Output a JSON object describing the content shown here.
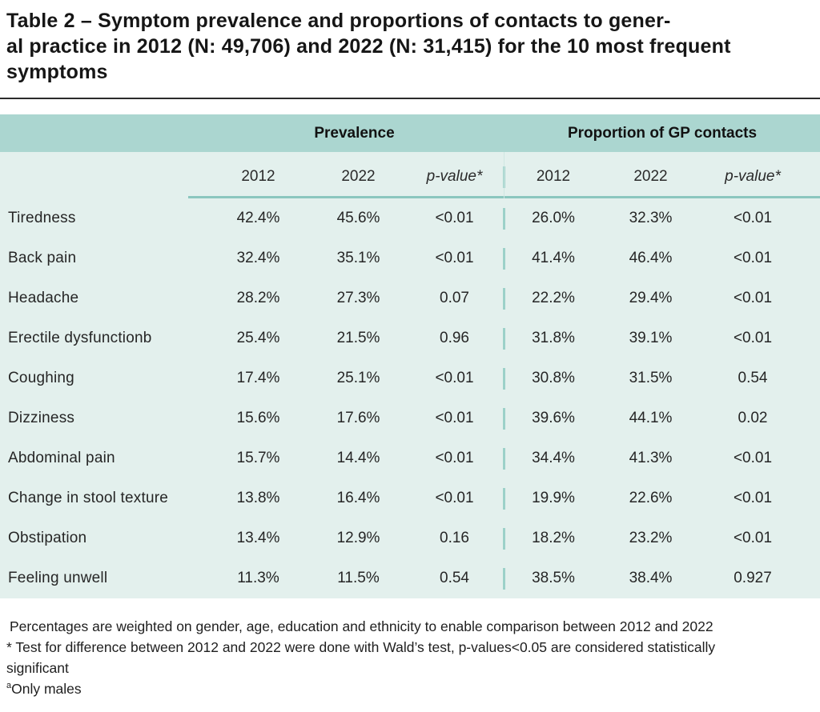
{
  "title": {
    "lines": [
      "Table 2 – Symptom prevalence and proportions of contacts to gener-",
      "al practice in 2012 (N: 49,706) and 2022 (N: 31,415) for the 10 most frequent",
      "symptoms"
    ]
  },
  "table": {
    "group_headers": [
      {
        "label": "Prevalence"
      },
      {
        "label": "Proportion of GP contacts"
      }
    ],
    "column_headers": [
      "2012",
      "2022",
      "p-value*",
      "2012",
      "2022",
      "p-value*"
    ],
    "rows": [
      {
        "symptom": "Tiredness",
        "values": [
          "42.4%",
          "45.6%",
          "<0.01",
          "26.0%",
          "32.3%",
          "<0.01"
        ]
      },
      {
        "symptom": "Back pain",
        "values": [
          "32.4%",
          "35.1%",
          "<0.01",
          "41.4%",
          "46.4%",
          "<0.01"
        ]
      },
      {
        "symptom": "Headache",
        "values": [
          "28.2%",
          "27.3%",
          "0.07",
          "22.2%",
          "29.4%",
          "<0.01"
        ]
      },
      {
        "symptom": "Erectile dysfunctionb",
        "values": [
          "25.4%",
          "21.5%",
          "0.96",
          "31.8%",
          "39.1%",
          "<0.01"
        ]
      },
      {
        "symptom": "Coughing",
        "values": [
          "17.4%",
          "25.1%",
          "<0.01",
          "30.8%",
          "31.5%",
          "0.54"
        ]
      },
      {
        "symptom": "Dizziness",
        "values": [
          "15.6%",
          "17.6%",
          "<0.01",
          "39.6%",
          "44.1%",
          "0.02"
        ]
      },
      {
        "symptom": "Abdominal pain",
        "values": [
          "15.7%",
          "14.4%",
          "<0.01",
          "34.4%",
          "41.3%",
          "<0.01"
        ]
      },
      {
        "symptom": "Change in stool texture",
        "values": [
          "13.8%",
          "16.4%",
          "<0.01",
          "19.9%",
          "22.6%",
          "<0.01"
        ]
      },
      {
        "symptom": "Obstipation",
        "values": [
          "13.4%",
          "12.9%",
          "0.16",
          "18.2%",
          "23.2%",
          "<0.01"
        ]
      },
      {
        "symptom": "Feeling unwell",
        "values": [
          "11.3%",
          "11.5%",
          "0.54",
          "38.5%",
          "38.4%",
          "0.927"
        ]
      }
    ]
  },
  "footnotes": {
    "weighting": "Percentages are weighted on gender, age, education and ethnicity to enable comparison between 2012 and 2022",
    "wald_line1": "* Test for difference between 2012 and 2022 were done with Wald’s test, p-values<0.05 are considered statistically",
    "wald_line2": "significant",
    "only_males_sup": "a",
    "only_males_text": "Only males"
  },
  "colors": {
    "header_band": "#abd6d0",
    "body_background": "#e3f0ed",
    "underline": "#8bc7bf",
    "divider_dash": "#9cd1c9",
    "title_rule": "#2b2b2b"
  }
}
